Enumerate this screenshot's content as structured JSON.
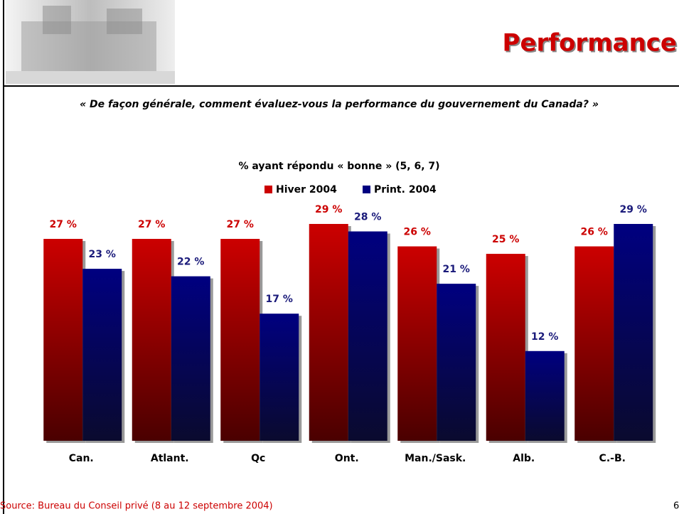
{
  "header": {
    "title": "Performance"
  },
  "question": "« De façon générale, comment évaluez-vous la performance du gouvernement du Canada? »",
  "chart_data": {
    "type": "bar",
    "title": "% ayant répondu « bonne » (5, 6, 7)",
    "categories": [
      "Can.",
      "Atlant.",
      "Qc",
      "Ont.",
      "Man./Sask.",
      "Alb.",
      "C.-B."
    ],
    "series": [
      {
        "name": "Hiver 2004",
        "color": "#cc0000",
        "values": [
          27,
          27,
          27,
          29,
          26,
          25,
          26
        ],
        "value_labels": [
          "27 %",
          "27 %",
          "27 %",
          "29 %",
          "26 %",
          "25 %",
          "26 %"
        ]
      },
      {
        "name": "Print. 2004",
        "color": "#000080",
        "values": [
          23,
          22,
          17,
          28,
          21,
          12,
          29
        ],
        "value_labels": [
          "23 %",
          "22 %",
          "17 %",
          "28 %",
          "21 %",
          "12 %",
          "29 %"
        ]
      }
    ]
  },
  "footer": {
    "source": "Source: Bureau du Conseil privé (8 au 12 septembre 2004)",
    "page": "6"
  }
}
